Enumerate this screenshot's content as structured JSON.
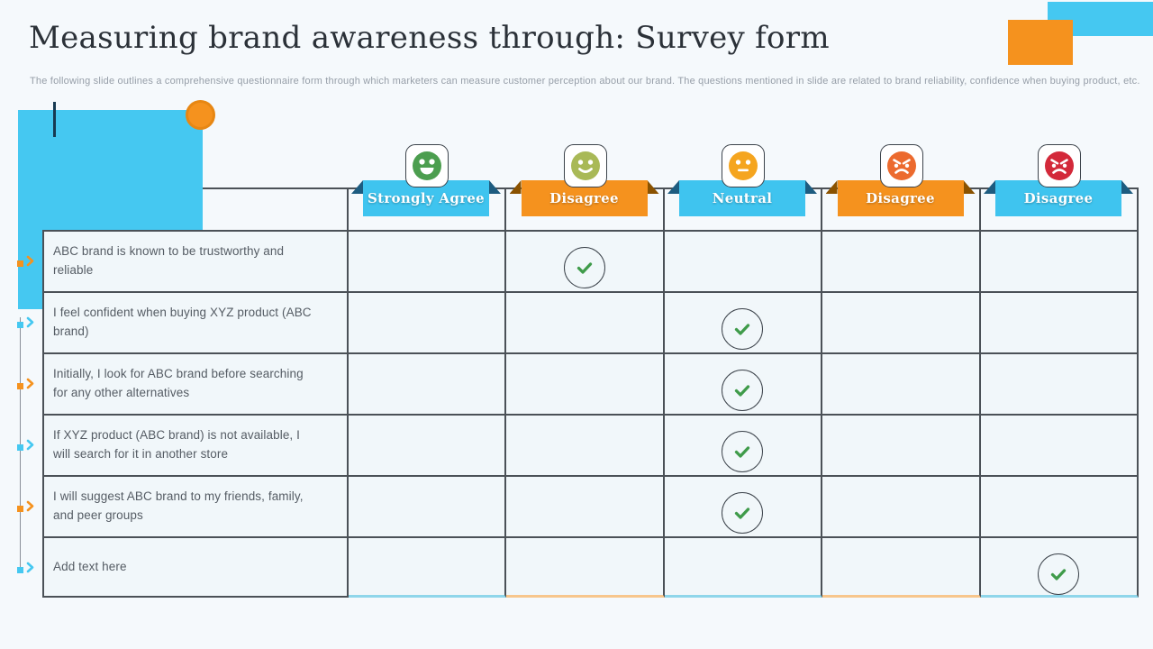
{
  "slide": {
    "title": "Measuring brand awareness through: Survey form",
    "subtitle": "The following slide outlines a comprehensive questionnaire form through which marketers can measure customer perception about our brand. The questions mentioned in slide are related to brand reliability, confidence when buying product, etc."
  },
  "survey": {
    "columns": [
      {
        "label": "Strongly Agree",
        "scheme": "blue",
        "icon": "happy-open-face-icon",
        "face": "happy",
        "face_color": "#4c9e4f"
      },
      {
        "label": "Disagree",
        "scheme": "orange",
        "icon": "smile-face-icon",
        "face": "smile",
        "face_color": "#a9b957"
      },
      {
        "label": "Neutral",
        "scheme": "blue",
        "icon": "neutral-face-icon",
        "face": "neutral",
        "face_color": "#f5a51f"
      },
      {
        "label": "Disagree",
        "scheme": "orange",
        "icon": "angry-face-icon",
        "face": "angry",
        "face_color": "#ec6a2e"
      },
      {
        "label": "Disagree",
        "scheme": "blue",
        "icon": "rage-face-icon",
        "face": "angry",
        "face_color": "#d3293a"
      }
    ],
    "rows": [
      {
        "question": "ABC brand is known to be trustworthy and reliable",
        "checked_column": 1,
        "marker": "orange"
      },
      {
        "question": "I feel confident when buying XYZ product (ABC brand)",
        "checked_column": 2,
        "marker": "blue"
      },
      {
        "question": "Initially, I look for ABC brand before searching for any other alternatives",
        "checked_column": 2,
        "marker": "orange"
      },
      {
        "question": "If XYZ product (ABC brand) is not available, I will search for it in another store",
        "checked_column": 2,
        "marker": "blue"
      },
      {
        "question": "I will suggest ABC brand to my friends, family, and peer groups",
        "checked_column": 2,
        "marker": "orange"
      },
      {
        "question": "Add text here",
        "checked_column": 4,
        "marker": "blue"
      }
    ],
    "check_color": "#3f9b4a"
  },
  "colors": {
    "accent_blue": "#45c8f1",
    "accent_orange": "#f5921e",
    "table_border": "#4b5157",
    "cell_background": "#f1f7fa",
    "ribbon_blue": "#3fc4ef",
    "ribbon_orange": "#f5921e"
  }
}
